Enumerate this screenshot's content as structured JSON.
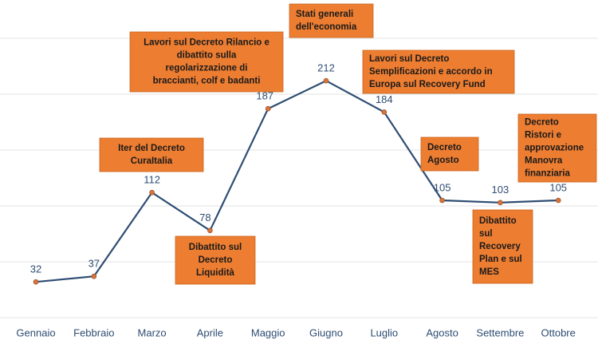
{
  "chart_data": {
    "type": "line",
    "categories": [
      "Gennaio",
      "Febbraio",
      "Marzo",
      "Aprile",
      "Maggio",
      "Giugno",
      "Luglio",
      "Agosto",
      "Settembre",
      "Ottobre"
    ],
    "values": [
      32,
      37,
      112,
      78,
      187,
      212,
      184,
      105,
      103,
      105
    ],
    "color": "#2e4d73",
    "marker_color": "#d9733a",
    "ylim": [
      0,
      250
    ],
    "yticks": [
      0,
      50,
      100,
      150,
      200,
      250
    ],
    "grid": true,
    "ytick_labels": false,
    "annotations": [
      [
        "Iter del Decreto",
        "CuraItalia"
      ],
      [
        "Lavori sul Decreto Rilancio e",
        "dibattito sulla",
        "regolarizzazione di",
        "braccianti, colf e badanti"
      ],
      [
        "Stati generali",
        "dell'economia"
      ],
      [
        "Lavori sul Decreto",
        "Semplificazioni e accordo in",
        "Europa sul Recovery Fund"
      ],
      [
        "Decreto",
        "Agosto"
      ],
      [
        "Decreto",
        "Ristori e",
        "approvazione",
        "Manovra",
        "finanziaria"
      ],
      [
        "Dibattito sul",
        "Decreto",
        "Liquidità"
      ],
      [
        "Dibattito",
        "sul",
        "Recovery",
        "Plan e sul",
        "MES"
      ]
    ],
    "annotation_color": "#ed7d31"
  }
}
